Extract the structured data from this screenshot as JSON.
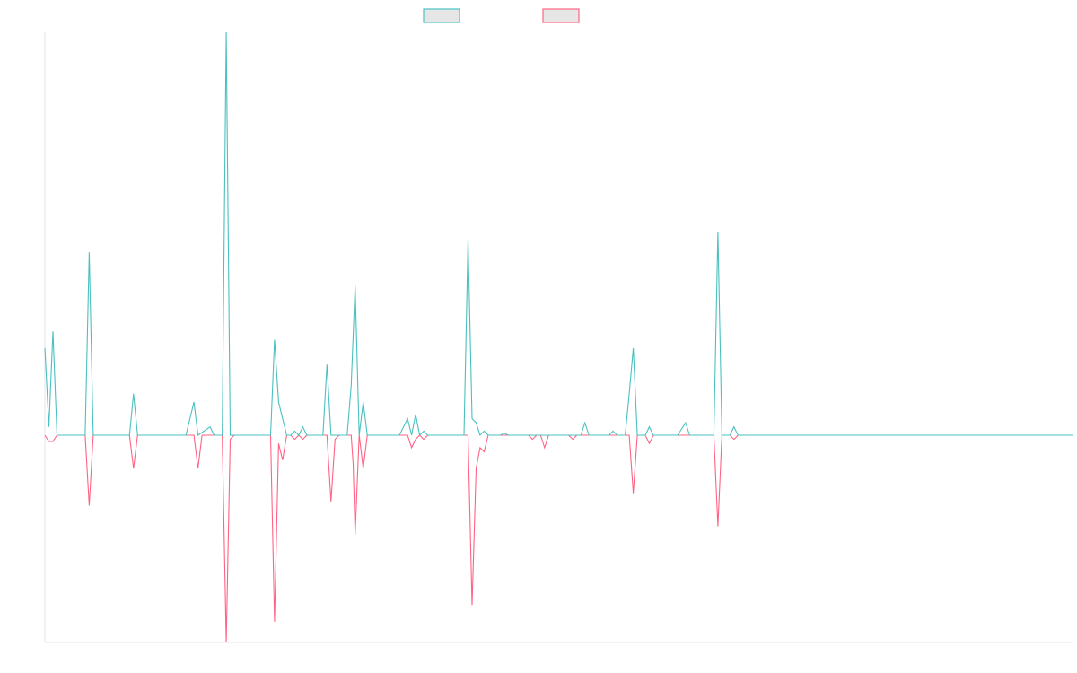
{
  "chart_data": {
    "type": "line",
    "title": "",
    "xlabel": "",
    "ylabel": "",
    "grid": false,
    "legend_position": "top-center",
    "xlim": [
      0,
      255
    ],
    "ylim": [
      -50,
      95
    ],
    "zero_line": 0,
    "series": [
      {
        "color": "#4bc0c0",
        "legend_swatch": "#e6e6e6",
        "points": [
          [
            0,
            21
          ],
          [
            1,
            2
          ],
          [
            2,
            25
          ],
          [
            3,
            0
          ],
          [
            4,
            0
          ],
          [
            5,
            0
          ],
          [
            6,
            0
          ],
          [
            10,
            0
          ],
          [
            11,
            44
          ],
          [
            12,
            0
          ],
          [
            16,
            0
          ],
          [
            21,
            0
          ],
          [
            22,
            10
          ],
          [
            23,
            0
          ],
          [
            35,
            0
          ],
          [
            37,
            8
          ],
          [
            38,
            0
          ],
          [
            41,
            2
          ],
          [
            42,
            0
          ],
          [
            44,
            0
          ],
          [
            45,
            97
          ],
          [
            46,
            0
          ],
          [
            47,
            0
          ],
          [
            48,
            0
          ],
          [
            56,
            0
          ],
          [
            57,
            23
          ],
          [
            58,
            8
          ],
          [
            59,
            4
          ],
          [
            60,
            0
          ],
          [
            61,
            0
          ],
          [
            62,
            1
          ],
          [
            63,
            0
          ],
          [
            64,
            2
          ],
          [
            65,
            0
          ],
          [
            68,
            0
          ],
          [
            69,
            0
          ],
          [
            70,
            17
          ],
          [
            71,
            0
          ],
          [
            72,
            0
          ],
          [
            75,
            0
          ],
          [
            76,
            12
          ],
          [
            77,
            36
          ],
          [
            78,
            0
          ],
          [
            79,
            8
          ],
          [
            80,
            0
          ],
          [
            88,
            0
          ],
          [
            90,
            4
          ],
          [
            91,
            0
          ],
          [
            92,
            5
          ],
          [
            93,
            0
          ],
          [
            94,
            1
          ],
          [
            95,
            0
          ],
          [
            104,
            0
          ],
          [
            105,
            47
          ],
          [
            106,
            4
          ],
          [
            107,
            3
          ],
          [
            108,
            0
          ],
          [
            109,
            1
          ],
          [
            110,
            0
          ],
          [
            113,
            0
          ],
          [
            114,
            0.5
          ],
          [
            115,
            0
          ],
          [
            119,
            0
          ],
          [
            120,
            0
          ],
          [
            122,
            0
          ],
          [
            133,
            0
          ],
          [
            134,
            3
          ],
          [
            135,
            0
          ],
          [
            140,
            0
          ],
          [
            141,
            1
          ],
          [
            142,
            0
          ],
          [
            144,
            0
          ],
          [
            145,
            10
          ],
          [
            146,
            21
          ],
          [
            147,
            0
          ],
          [
            149,
            0
          ],
          [
            150,
            2
          ],
          [
            151,
            0
          ],
          [
            153,
            0
          ],
          [
            154,
            0
          ],
          [
            157,
            0
          ],
          [
            159,
            3
          ],
          [
            160,
            0
          ],
          [
            163,
            0
          ],
          [
            164,
            0
          ],
          [
            166,
            0
          ],
          [
            167,
            49
          ],
          [
            168,
            0
          ],
          [
            170,
            0
          ],
          [
            171,
            2
          ],
          [
            172,
            0
          ],
          [
            255,
            0
          ]
        ]
      },
      {
        "color": "#ff6384",
        "legend_swatch": "#e6e6e6",
        "points": [
          [
            0,
            0
          ],
          [
            1,
            -1.5
          ],
          [
            2,
            -1.5
          ],
          [
            3,
            0
          ],
          [
            10,
            0
          ],
          [
            11,
            -17
          ],
          [
            12,
            0
          ],
          [
            21,
            0
          ],
          [
            22,
            -8
          ],
          [
            23,
            0
          ],
          [
            37,
            0
          ],
          [
            38,
            -8
          ],
          [
            39,
            0
          ],
          [
            44,
            0
          ],
          [
            45,
            -50
          ],
          [
            46,
            -1
          ],
          [
            47,
            0
          ],
          [
            48,
            0
          ],
          [
            56,
            0
          ],
          [
            57,
            -45
          ],
          [
            58,
            -2
          ],
          [
            59,
            -6
          ],
          [
            60,
            0
          ],
          [
            61,
            0
          ],
          [
            62,
            -1
          ],
          [
            63,
            0
          ],
          [
            64,
            -1
          ],
          [
            65,
            0
          ],
          [
            70,
            0
          ],
          [
            71,
            -16
          ],
          [
            72,
            -1
          ],
          [
            73,
            0
          ],
          [
            76,
            0
          ],
          [
            76.5,
            -7
          ],
          [
            77,
            -24
          ],
          [
            78,
            0
          ],
          [
            79,
            -8
          ],
          [
            80,
            0
          ],
          [
            90,
            0
          ],
          [
            91,
            -3
          ],
          [
            92,
            -1
          ],
          [
            93,
            0
          ],
          [
            94,
            -1
          ],
          [
            95,
            0
          ],
          [
            105,
            0
          ],
          [
            106,
            -41
          ],
          [
            107,
            -8
          ],
          [
            108,
            -3
          ],
          [
            109,
            -4
          ],
          [
            110,
            0
          ],
          [
            120,
            0
          ],
          [
            121,
            -1
          ],
          [
            122,
            0
          ],
          [
            123,
            0
          ],
          [
            124,
            -3
          ],
          [
            125,
            0
          ],
          [
            130,
            0
          ],
          [
            131,
            -1
          ],
          [
            132,
            0
          ],
          [
            140,
            0
          ],
          [
            141,
            0
          ],
          [
            142,
            0
          ],
          [
            145,
            0
          ],
          [
            146,
            -14
          ],
          [
            147,
            0
          ],
          [
            149,
            0
          ],
          [
            150,
            -2
          ],
          [
            151,
            0
          ],
          [
            153,
            0
          ],
          [
            154,
            0
          ],
          [
            163,
            0
          ],
          [
            164,
            0
          ],
          [
            166,
            0
          ],
          [
            167,
            -22
          ],
          [
            168,
            0
          ],
          [
            170,
            0
          ],
          [
            171,
            -1
          ],
          [
            172,
            0
          ],
          [
            255,
            0
          ]
        ]
      }
    ]
  }
}
